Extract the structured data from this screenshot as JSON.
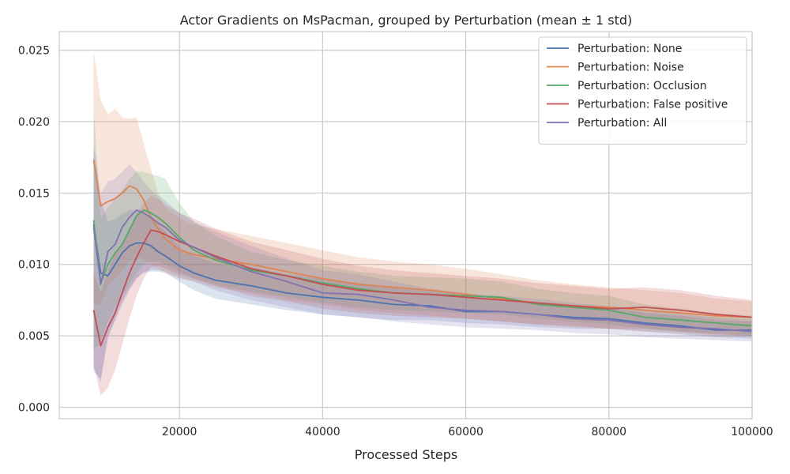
{
  "chart_data": {
    "type": "line",
    "title": "Actor Gradients on MsPacman, grouped by Perturbation (mean ± 1 std)",
    "xlabel": "Processed Steps",
    "ylabel": "",
    "xlim": [
      3200,
      100000
    ],
    "ylim": [
      -0.0008,
      0.0263
    ],
    "xticks": [
      20000,
      40000,
      60000,
      80000,
      100000
    ],
    "xtick_labels": [
      "20000",
      "40000",
      "60000",
      "80000",
      "100000"
    ],
    "yticks": [
      0.0,
      0.005,
      0.01,
      0.015,
      0.02,
      0.025
    ],
    "ytick_labels": [
      "0.000",
      "0.005",
      "0.010",
      "0.015",
      "0.020",
      "0.025"
    ],
    "grid": true,
    "legend_position": "top-right",
    "x": [
      8000,
      9000,
      10000,
      11000,
      12000,
      13000,
      14000,
      15000,
      16000,
      17000,
      18000,
      20000,
      22000,
      25000,
      30000,
      35000,
      40000,
      45000,
      50000,
      55000,
      60000,
      65000,
      70000,
      75000,
      80000,
      85000,
      90000,
      95000,
      100000
    ],
    "series": [
      {
        "name": "Perturbation: None",
        "color": "#4c72b0",
        "values": [
          0.0128,
          0.0094,
          0.0092,
          0.01,
          0.0108,
          0.0113,
          0.0115,
          0.0115,
          0.0113,
          0.0109,
          0.0106,
          0.0099,
          0.0094,
          0.0089,
          0.0085,
          0.008,
          0.0077,
          0.0075,
          0.0072,
          0.0071,
          0.0067,
          0.0067,
          0.0065,
          0.0063,
          0.0062,
          0.0059,
          0.0057,
          0.0054,
          0.0054
        ],
        "std_lower": [
          0.0027,
          0.0018,
          0.0048,
          0.0062,
          0.0074,
          0.0083,
          0.009,
          0.0094,
          0.0095,
          0.0095,
          0.0094,
          0.0088,
          0.0082,
          0.0076,
          0.0072,
          0.0068,
          0.0065,
          0.0063,
          0.0061,
          0.0061,
          0.0059,
          0.0058,
          0.0056,
          0.0055,
          0.0055,
          0.0053,
          0.0051,
          0.0049,
          0.0048
        ],
        "std_upper": [
          0.018,
          0.0145,
          0.013,
          0.0132,
          0.0135,
          0.0138,
          0.0138,
          0.0136,
          0.0133,
          0.0128,
          0.0123,
          0.0112,
          0.0106,
          0.0101,
          0.0098,
          0.0093,
          0.009,
          0.0087,
          0.0084,
          0.0082,
          0.0078,
          0.0076,
          0.0074,
          0.0072,
          0.007,
          0.0066,
          0.0064,
          0.0061,
          0.006
        ]
      },
      {
        "name": "Perturbation: Noise",
        "color": "#dd8452",
        "values": [
          0.0173,
          0.0141,
          0.0144,
          0.0146,
          0.015,
          0.0155,
          0.0153,
          0.0145,
          0.0133,
          0.0125,
          0.0118,
          0.011,
          0.0107,
          0.0104,
          0.01,
          0.0095,
          0.009,
          0.0086,
          0.0084,
          0.0082,
          0.0079,
          0.0076,
          0.0073,
          0.0071,
          0.007,
          0.0068,
          0.0066,
          0.0064,
          0.0063
        ],
        "std_lower": [
          0.0072,
          0.0072,
          0.0085,
          0.009,
          0.0096,
          0.0102,
          0.0104,
          0.0104,
          0.01,
          0.0097,
          0.0094,
          0.009,
          0.0088,
          0.0084,
          0.008,
          0.0075,
          0.0072,
          0.0068,
          0.0066,
          0.0064,
          0.0062,
          0.006,
          0.0058,
          0.0056,
          0.0055,
          0.0053,
          0.0052,
          0.005,
          0.0049
        ],
        "std_upper": [
          0.025,
          0.0215,
          0.0205,
          0.0209,
          0.0203,
          0.0202,
          0.0203,
          0.0185,
          0.0167,
          0.015,
          0.014,
          0.0132,
          0.0128,
          0.0125,
          0.012,
          0.0115,
          0.011,
          0.0105,
          0.0102,
          0.01,
          0.0097,
          0.0093,
          0.0089,
          0.0086,
          0.0084,
          0.0082,
          0.008,
          0.0076,
          0.0074
        ]
      },
      {
        "name": "Perturbation: Occlusion",
        "color": "#55a868",
        "values": [
          0.0131,
          0.0087,
          0.01,
          0.0108,
          0.0114,
          0.0124,
          0.0134,
          0.0138,
          0.0136,
          0.0133,
          0.0129,
          0.0119,
          0.011,
          0.0103,
          0.0096,
          0.0092,
          0.0087,
          0.0083,
          0.008,
          0.0079,
          0.0078,
          0.0077,
          0.0072,
          0.007,
          0.0068,
          0.0063,
          0.0061,
          0.0059,
          0.0057
        ],
        "std_lower": [
          0.004,
          0.0045,
          0.006,
          0.007,
          0.0078,
          0.0086,
          0.0094,
          0.01,
          0.0102,
          0.0102,
          0.01,
          0.0095,
          0.009,
          0.0086,
          0.0081,
          0.0077,
          0.0073,
          0.007,
          0.0068,
          0.0067,
          0.0066,
          0.0065,
          0.0062,
          0.006,
          0.0058,
          0.0055,
          0.0053,
          0.0052,
          0.005
        ],
        "std_upper": [
          0.021,
          0.0132,
          0.014,
          0.0146,
          0.0152,
          0.016,
          0.0165,
          0.0165,
          0.0163,
          0.0162,
          0.016,
          0.0143,
          0.013,
          0.012,
          0.0109,
          0.0103,
          0.0099,
          0.0095,
          0.0092,
          0.0091,
          0.009,
          0.0088,
          0.0083,
          0.008,
          0.0078,
          0.0072,
          0.0069,
          0.0066,
          0.0064
        ]
      },
      {
        "name": "Perturbation: False positive",
        "color": "#c44e52",
        "values": [
          0.0068,
          0.0043,
          0.0056,
          0.0066,
          0.008,
          0.0094,
          0.0105,
          0.0115,
          0.0124,
          0.0123,
          0.0121,
          0.0116,
          0.0112,
          0.0106,
          0.0097,
          0.0092,
          0.0086,
          0.0082,
          0.008,
          0.0079,
          0.0077,
          0.0075,
          0.0073,
          0.0071,
          0.0069,
          0.007,
          0.0068,
          0.0065,
          0.0063
        ],
        "std_lower": [
          0.003,
          0.0008,
          0.0014,
          0.0026,
          0.0044,
          0.0062,
          0.0078,
          0.009,
          0.0098,
          0.0099,
          0.0097,
          0.0093,
          0.009,
          0.0085,
          0.0078,
          0.0074,
          0.0069,
          0.0066,
          0.0064,
          0.0063,
          0.0062,
          0.006,
          0.0058,
          0.0057,
          0.0055,
          0.0055,
          0.0053,
          0.0051,
          0.005
        ],
        "std_upper": [
          0.0095,
          0.008,
          0.0095,
          0.0108,
          0.0115,
          0.0125,
          0.0135,
          0.0143,
          0.0148,
          0.0146,
          0.0142,
          0.0136,
          0.0132,
          0.0125,
          0.0116,
          0.011,
          0.0104,
          0.0099,
          0.0096,
          0.0094,
          0.0092,
          0.009,
          0.0087,
          0.0085,
          0.0083,
          0.0084,
          0.0082,
          0.0078,
          0.0075
        ]
      },
      {
        "name": "Perturbation: All",
        "color": "#8172b3",
        "values": [
          0.0126,
          0.0086,
          0.0109,
          0.0114,
          0.0126,
          0.0133,
          0.0138,
          0.0136,
          0.0133,
          0.0129,
          0.0126,
          0.0117,
          0.0112,
          0.0105,
          0.0095,
          0.0088,
          0.008,
          0.0079,
          0.0075,
          0.007,
          0.0068,
          0.0067,
          0.0065,
          0.0062,
          0.0061,
          0.0058,
          0.0056,
          0.0055,
          0.0053
        ],
        "std_lower": [
          0.0025,
          0.002,
          0.005,
          0.006,
          0.0072,
          0.0082,
          0.009,
          0.0095,
          0.0096,
          0.0096,
          0.0095,
          0.0091,
          0.0088,
          0.0082,
          0.0075,
          0.007,
          0.0065,
          0.0063,
          0.006,
          0.0058,
          0.0056,
          0.0055,
          0.0054,
          0.0052,
          0.0051,
          0.0049,
          0.0048,
          0.0047,
          0.0046
        ],
        "std_upper": [
          0.0185,
          0.015,
          0.0158,
          0.016,
          0.0165,
          0.017,
          0.0165,
          0.0158,
          0.0152,
          0.0148,
          0.0145,
          0.0136,
          0.013,
          0.0123,
          0.0113,
          0.0104,
          0.0096,
          0.0093,
          0.0088,
          0.0083,
          0.008,
          0.0078,
          0.0076,
          0.0073,
          0.0071,
          0.0068,
          0.0065,
          0.0063,
          0.0061
        ]
      }
    ]
  }
}
